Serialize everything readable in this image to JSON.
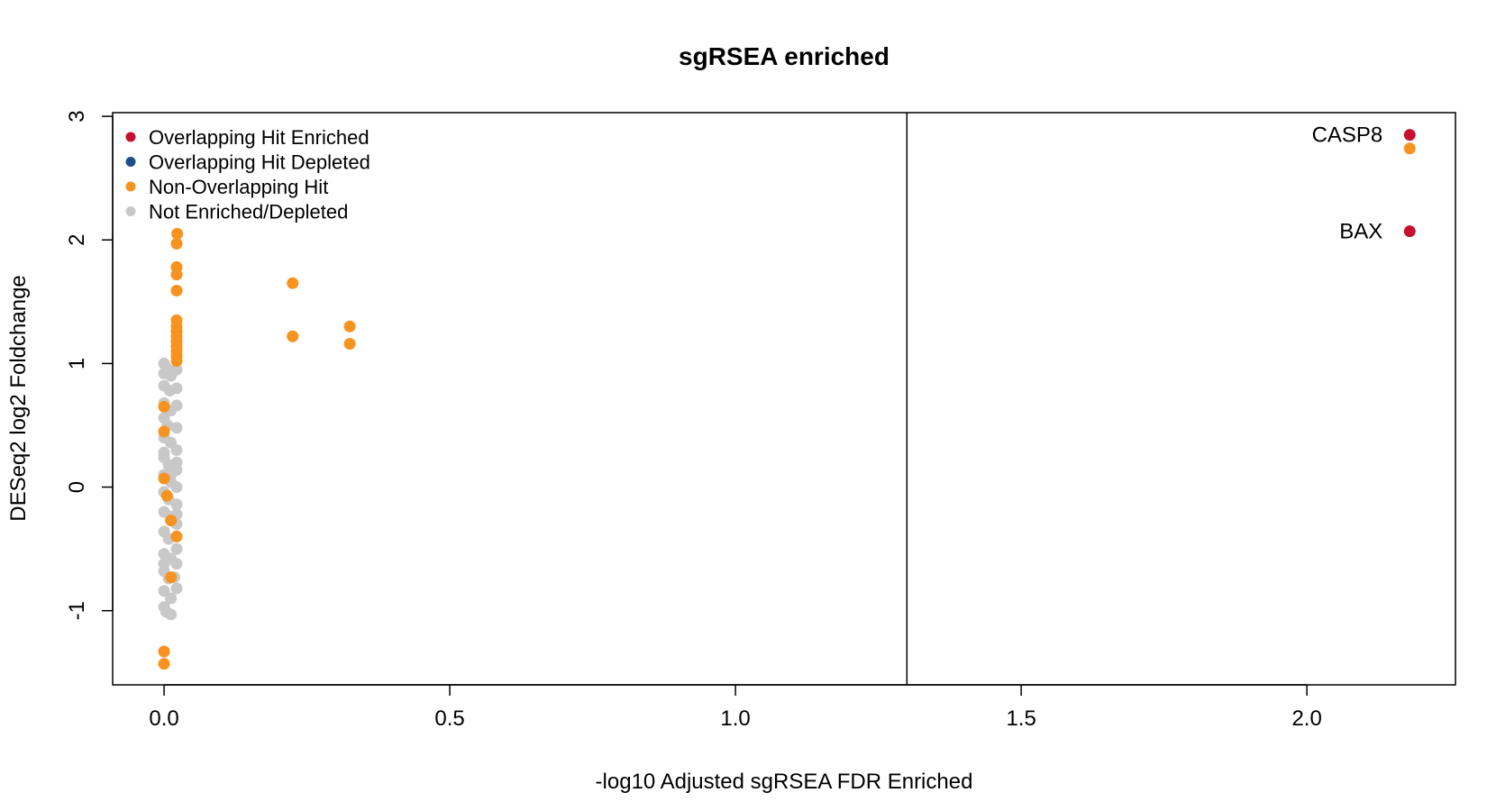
{
  "chart_data": {
    "type": "scatter",
    "title": "sgRSEA enriched",
    "xlabel": "-log10 Adjusted sgRSEA FDR Enriched",
    "ylabel": "DESeq2 log2 Foldchange",
    "xlim": [
      -0.09,
      2.26
    ],
    "ylim": [
      -1.6,
      3.03
    ],
    "xticks": [
      0.0,
      0.5,
      1.0,
      1.5,
      2.0
    ],
    "xtick_labels": [
      "0.0",
      "0.5",
      "1.0",
      "1.5",
      "2.0"
    ],
    "yticks": [
      -1,
      0,
      1,
      2,
      3
    ],
    "ytick_labels": [
      "-1",
      "0",
      "1",
      "2",
      "3"
    ],
    "vline": 1.3,
    "grid": false,
    "legend_position": "top-left",
    "colors": {
      "overlap_enriched": "#c8102e",
      "overlap_depleted": "#1f4e8c",
      "non_overlap": "#f7931e",
      "not_sig": "#c8c8c8"
    },
    "series": [
      {
        "name": "Overlapping Hit Enriched",
        "color_key": "overlap_enriched",
        "points": [
          [
            2.18,
            2.85
          ],
          [
            2.18,
            2.07
          ]
        ]
      },
      {
        "name": "Overlapping Hit Depleted",
        "color_key": "overlap_depleted",
        "points": []
      },
      {
        "name": "Non-Overlapping Hit",
        "color_key": "non_overlap",
        "points": [
          [
            0.023,
            2.05
          ],
          [
            0.022,
            1.97
          ],
          [
            0.022,
            1.78
          ],
          [
            0.022,
            1.72
          ],
          [
            0.022,
            1.59
          ],
          [
            0.022,
            1.35
          ],
          [
            0.022,
            1.3
          ],
          [
            0.022,
            1.26
          ],
          [
            0.022,
            1.22
          ],
          [
            0.022,
            1.18
          ],
          [
            0.022,
            1.14
          ],
          [
            0.022,
            1.1
          ],
          [
            0.022,
            1.06
          ],
          [
            0.022,
            1.02
          ],
          [
            0.225,
            1.65
          ],
          [
            0.225,
            1.22
          ],
          [
            0.325,
            1.3
          ],
          [
            0.325,
            1.16
          ],
          [
            0.0,
            0.65
          ],
          [
            0.0,
            0.45
          ],
          [
            0.0,
            0.07
          ],
          [
            0.005,
            -0.07
          ],
          [
            0.012,
            -0.27
          ],
          [
            0.022,
            -0.4
          ],
          [
            0.012,
            -0.73
          ],
          [
            0.0,
            -1.33
          ],
          [
            0.0,
            -1.43
          ],
          [
            2.18,
            2.74
          ]
        ]
      },
      {
        "name": "Not Enriched/Depleted",
        "color_key": "not_sig",
        "points": [
          [
            0.0,
            1.0
          ],
          [
            0.005,
            0.96
          ],
          [
            0.0,
            0.92
          ],
          [
            0.012,
            0.9
          ],
          [
            0.022,
            0.95
          ],
          [
            0.0,
            0.82
          ],
          [
            0.01,
            0.78
          ],
          [
            0.022,
            0.8
          ],
          [
            0.0,
            0.68
          ],
          [
            0.012,
            0.62
          ],
          [
            0.022,
            0.66
          ],
          [
            0.0,
            0.56
          ],
          [
            0.006,
            0.5
          ],
          [
            0.022,
            0.48
          ],
          [
            0.0,
            0.4
          ],
          [
            0.012,
            0.36
          ],
          [
            0.022,
            0.3
          ],
          [
            0.0,
            0.24
          ],
          [
            0.008,
            0.18
          ],
          [
            0.022,
            0.14
          ],
          [
            0.0,
            0.1
          ],
          [
            0.012,
            0.04
          ],
          [
            0.022,
            0.0
          ],
          [
            0.0,
            -0.04
          ],
          [
            0.008,
            -0.1
          ],
          [
            0.022,
            -0.14
          ],
          [
            0.0,
            -0.2
          ],
          [
            0.012,
            -0.24
          ],
          [
            0.022,
            -0.3
          ],
          [
            0.0,
            -0.36
          ],
          [
            0.008,
            -0.42
          ],
          [
            0.022,
            -0.5
          ],
          [
            0.0,
            -0.54
          ],
          [
            0.012,
            -0.58
          ],
          [
            0.022,
            -0.62
          ],
          [
            0.0,
            -0.68
          ],
          [
            0.008,
            -0.74
          ],
          [
            0.018,
            -0.73
          ],
          [
            0.022,
            -0.82
          ],
          [
            0.0,
            -0.84
          ],
          [
            0.012,
            -0.9
          ],
          [
            0.0,
            -0.97
          ],
          [
            0.004,
            -1.01
          ],
          [
            0.012,
            -1.03
          ],
          [
            0.0,
            0.28
          ],
          [
            0.022,
            0.2
          ],
          [
            0.012,
            0.1
          ],
          [
            0.022,
            -0.22
          ],
          [
            0.0,
            -0.62
          ],
          [
            0.022,
            -0.4
          ]
        ]
      }
    ],
    "annotations": [
      {
        "text": "CASP8",
        "x": 2.18,
        "y": 2.85
      },
      {
        "text": "BAX",
        "x": 2.18,
        "y": 2.07
      }
    ]
  }
}
